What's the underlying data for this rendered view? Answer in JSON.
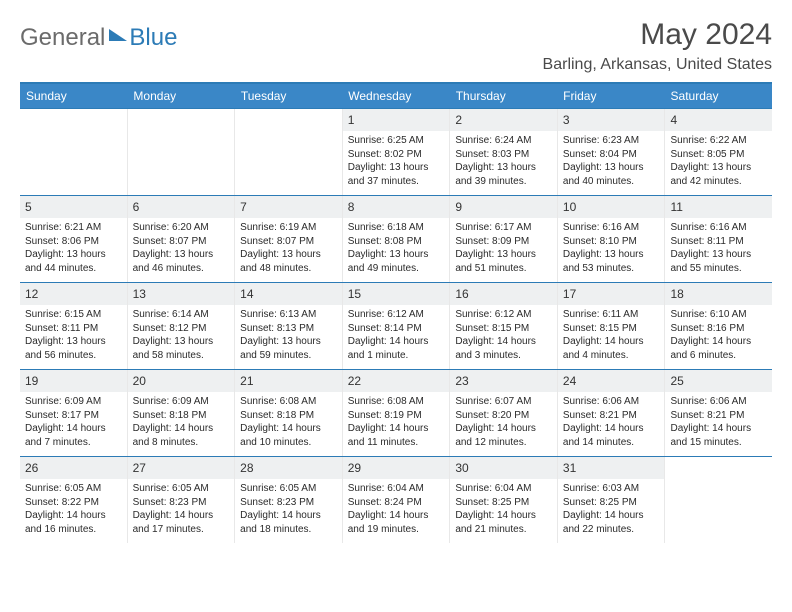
{
  "brand": {
    "word1": "General",
    "word2": "Blue"
  },
  "title": "May 2024",
  "location": "Barling, Arkansas, United States",
  "colors": {
    "header_bar": "#3a87c7",
    "rule": "#2c7bb6",
    "daynum_bg": "#eef0f1",
    "text": "#2a2a2a",
    "title_text": "#4a4a4a"
  },
  "dow": [
    "Sunday",
    "Monday",
    "Tuesday",
    "Wednesday",
    "Thursday",
    "Friday",
    "Saturday"
  ],
  "weeks": [
    [
      null,
      null,
      null,
      {
        "n": "1",
        "sun": "Sunrise: 6:25 AM",
        "set": "Sunset: 8:02 PM",
        "d1": "Daylight: 13 hours",
        "d2": "and 37 minutes."
      },
      {
        "n": "2",
        "sun": "Sunrise: 6:24 AM",
        "set": "Sunset: 8:03 PM",
        "d1": "Daylight: 13 hours",
        "d2": "and 39 minutes."
      },
      {
        "n": "3",
        "sun": "Sunrise: 6:23 AM",
        "set": "Sunset: 8:04 PM",
        "d1": "Daylight: 13 hours",
        "d2": "and 40 minutes."
      },
      {
        "n": "4",
        "sun": "Sunrise: 6:22 AM",
        "set": "Sunset: 8:05 PM",
        "d1": "Daylight: 13 hours",
        "d2": "and 42 minutes."
      }
    ],
    [
      {
        "n": "5",
        "sun": "Sunrise: 6:21 AM",
        "set": "Sunset: 8:06 PM",
        "d1": "Daylight: 13 hours",
        "d2": "and 44 minutes."
      },
      {
        "n": "6",
        "sun": "Sunrise: 6:20 AM",
        "set": "Sunset: 8:07 PM",
        "d1": "Daylight: 13 hours",
        "d2": "and 46 minutes."
      },
      {
        "n": "7",
        "sun": "Sunrise: 6:19 AM",
        "set": "Sunset: 8:07 PM",
        "d1": "Daylight: 13 hours",
        "d2": "and 48 minutes."
      },
      {
        "n": "8",
        "sun": "Sunrise: 6:18 AM",
        "set": "Sunset: 8:08 PM",
        "d1": "Daylight: 13 hours",
        "d2": "and 49 minutes."
      },
      {
        "n": "9",
        "sun": "Sunrise: 6:17 AM",
        "set": "Sunset: 8:09 PM",
        "d1": "Daylight: 13 hours",
        "d2": "and 51 minutes."
      },
      {
        "n": "10",
        "sun": "Sunrise: 6:16 AM",
        "set": "Sunset: 8:10 PM",
        "d1": "Daylight: 13 hours",
        "d2": "and 53 minutes."
      },
      {
        "n": "11",
        "sun": "Sunrise: 6:16 AM",
        "set": "Sunset: 8:11 PM",
        "d1": "Daylight: 13 hours",
        "d2": "and 55 minutes."
      }
    ],
    [
      {
        "n": "12",
        "sun": "Sunrise: 6:15 AM",
        "set": "Sunset: 8:11 PM",
        "d1": "Daylight: 13 hours",
        "d2": "and 56 minutes."
      },
      {
        "n": "13",
        "sun": "Sunrise: 6:14 AM",
        "set": "Sunset: 8:12 PM",
        "d1": "Daylight: 13 hours",
        "d2": "and 58 minutes."
      },
      {
        "n": "14",
        "sun": "Sunrise: 6:13 AM",
        "set": "Sunset: 8:13 PM",
        "d1": "Daylight: 13 hours",
        "d2": "and 59 minutes."
      },
      {
        "n": "15",
        "sun": "Sunrise: 6:12 AM",
        "set": "Sunset: 8:14 PM",
        "d1": "Daylight: 14 hours",
        "d2": "and 1 minute."
      },
      {
        "n": "16",
        "sun": "Sunrise: 6:12 AM",
        "set": "Sunset: 8:15 PM",
        "d1": "Daylight: 14 hours",
        "d2": "and 3 minutes."
      },
      {
        "n": "17",
        "sun": "Sunrise: 6:11 AM",
        "set": "Sunset: 8:15 PM",
        "d1": "Daylight: 14 hours",
        "d2": "and 4 minutes."
      },
      {
        "n": "18",
        "sun": "Sunrise: 6:10 AM",
        "set": "Sunset: 8:16 PM",
        "d1": "Daylight: 14 hours",
        "d2": "and 6 minutes."
      }
    ],
    [
      {
        "n": "19",
        "sun": "Sunrise: 6:09 AM",
        "set": "Sunset: 8:17 PM",
        "d1": "Daylight: 14 hours",
        "d2": "and 7 minutes."
      },
      {
        "n": "20",
        "sun": "Sunrise: 6:09 AM",
        "set": "Sunset: 8:18 PM",
        "d1": "Daylight: 14 hours",
        "d2": "and 8 minutes."
      },
      {
        "n": "21",
        "sun": "Sunrise: 6:08 AM",
        "set": "Sunset: 8:18 PM",
        "d1": "Daylight: 14 hours",
        "d2": "and 10 minutes."
      },
      {
        "n": "22",
        "sun": "Sunrise: 6:08 AM",
        "set": "Sunset: 8:19 PM",
        "d1": "Daylight: 14 hours",
        "d2": "and 11 minutes."
      },
      {
        "n": "23",
        "sun": "Sunrise: 6:07 AM",
        "set": "Sunset: 8:20 PM",
        "d1": "Daylight: 14 hours",
        "d2": "and 12 minutes."
      },
      {
        "n": "24",
        "sun": "Sunrise: 6:06 AM",
        "set": "Sunset: 8:21 PM",
        "d1": "Daylight: 14 hours",
        "d2": "and 14 minutes."
      },
      {
        "n": "25",
        "sun": "Sunrise: 6:06 AM",
        "set": "Sunset: 8:21 PM",
        "d1": "Daylight: 14 hours",
        "d2": "and 15 minutes."
      }
    ],
    [
      {
        "n": "26",
        "sun": "Sunrise: 6:05 AM",
        "set": "Sunset: 8:22 PM",
        "d1": "Daylight: 14 hours",
        "d2": "and 16 minutes."
      },
      {
        "n": "27",
        "sun": "Sunrise: 6:05 AM",
        "set": "Sunset: 8:23 PM",
        "d1": "Daylight: 14 hours",
        "d2": "and 17 minutes."
      },
      {
        "n": "28",
        "sun": "Sunrise: 6:05 AM",
        "set": "Sunset: 8:23 PM",
        "d1": "Daylight: 14 hours",
        "d2": "and 18 minutes."
      },
      {
        "n": "29",
        "sun": "Sunrise: 6:04 AM",
        "set": "Sunset: 8:24 PM",
        "d1": "Daylight: 14 hours",
        "d2": "and 19 minutes."
      },
      {
        "n": "30",
        "sun": "Sunrise: 6:04 AM",
        "set": "Sunset: 8:25 PM",
        "d1": "Daylight: 14 hours",
        "d2": "and 21 minutes."
      },
      {
        "n": "31",
        "sun": "Sunrise: 6:03 AM",
        "set": "Sunset: 8:25 PM",
        "d1": "Daylight: 14 hours",
        "d2": "and 22 minutes."
      },
      null
    ]
  ]
}
